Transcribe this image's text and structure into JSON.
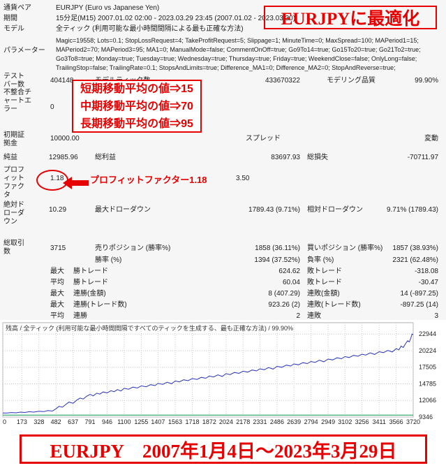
{
  "colors": {
    "annotation_red": "#e60000",
    "balance_line": "#2733b8",
    "lots_line": "#009a4e",
    "grid": "#c9c9c9",
    "report_bg": "#f6f6f6"
  },
  "report": {
    "rows": {
      "symbol": {
        "label": "通貨ペア",
        "value": "EURJPY (Euro vs Japanese Yen)"
      },
      "period": {
        "label": "期間",
        "value": "15分足(M15) 2007.01.02 02:00 - 2023.03.29 23:45 (2007.01.02 - 2023.03.30)"
      },
      "model": {
        "label": "モデル",
        "value": "全ティック (利用可能な最小時間間隔による最も正確な方法)"
      },
      "params": {
        "label": "パラメーター",
        "value": "Magic=19558; Lots=0.1; StopLossRequest=4; TakeProfitRequest=5; Slippage=1; MinuteTime=0; MaxSpread=100; MAPeriod1=15; MAPeriod2=70; MAPeriod3=95; MA1=0; ManualMode=false; CommentOnOff=true; Go9To14=true; Go15To20=true; Go21To2=true; Go3To8=true; Monday=true; Tuesday=true; Wednesday=true; Thursday=true; Friday=true; WeekendClose=false; OnlyLong=false; TrailingStop=false; TrailingRate=0.1; StopsAndLimits=true; Difference_MA1=0; Difference_MA2=0; StopAndReverse=true;"
      },
      "bars": {
        "label": "テストバー数",
        "value": "404148"
      },
      "ticks": {
        "label": "モデルティック数",
        "value": "433670322"
      },
      "quality": {
        "label": "モデリング品質",
        "value": "99.90%"
      },
      "mismatch": {
        "label": "不整合チャートエラー",
        "value": "0"
      },
      "deposit": {
        "label": "初期証拠金",
        "value": "10000.00"
      },
      "spread": {
        "label": "スプレッド",
        "value": "変動"
      },
      "net": {
        "label": "純益",
        "value": "12985.96"
      },
      "gross_profit": {
        "label": "総利益",
        "value": "83697.93"
      },
      "gross_loss": {
        "label": "総損失",
        "value": "-70711.97"
      },
      "pf": {
        "label": "プロフィットファクタ",
        "value": "1.18"
      },
      "payoff": {
        "label": "期待利得",
        "value": "3.50"
      },
      "abs_dd": {
        "label": "絶対ドローダウン",
        "value": "10.29"
      },
      "max_dd": {
        "label": "最大ドローダウン",
        "value": "1789.43 (9.71%)"
      },
      "rel_dd": {
        "label": "相対ドローダウン",
        "value": "9.71% (1789.43)"
      },
      "total_trades": {
        "label": "総取引数",
        "value": "3715"
      },
      "short_pos": {
        "label": "売りポジション (勝率%)",
        "value": "1858 (36.11%)"
      },
      "long_pos": {
        "label": "買いポジション (勝率%)",
        "value": "1857 (38.93%)"
      },
      "win": {
        "label": "勝率 (%)",
        "value": "1394 (37.52%)"
      },
      "loss": {
        "label": "負率 (%)",
        "value": "2321 (62.48%)"
      },
      "max_label": "最大",
      "avg_label": "平均",
      "largest_win": {
        "label": "勝トレード",
        "value": "624.62"
      },
      "largest_loss": {
        "label": "敗トレード",
        "value": "-318.08"
      },
      "avg_win": {
        "label": "勝トレード",
        "value": "60.04"
      },
      "avg_loss": {
        "label": "敗トレード",
        "value": "-30.47"
      },
      "consec_win_money": {
        "label": "連勝(金額)",
        "value": "8 (407.29)"
      },
      "consec_loss_money": {
        "label": "連敗(金額)",
        "value": "14 (-897.25)"
      },
      "consec_win_count": {
        "label": "連勝(トレード数)",
        "value": "923.26 (2)"
      },
      "consec_loss_count": {
        "label": "連敗(トレード数)",
        "value": "-897.25 (14)"
      },
      "avg_consec_win": {
        "label": "連勝",
        "value": "2"
      },
      "avg_consec_loss": {
        "label": "連敗",
        "value": "3"
      }
    }
  },
  "annotations": {
    "optimized": "EURJPYに最適化",
    "ma_lines": [
      "短期移動平均の値⇒15",
      "中期移動平均の値⇒70",
      "長期移動平均の値⇒95"
    ],
    "pf_note": "プロフィットファクター1.18",
    "bottom": "EURJPY　2007年1月4日～2023年3月29日"
  },
  "chart_data": {
    "type": "line",
    "caption": "残高 / 全ティック (利用可能な最小時間間隔ですべてのティックを生成する、最も正確な方法) / 99.90%",
    "xlabel": "",
    "ylabel": "",
    "grid": true,
    "legend": "none",
    "x_ticks": [
      0,
      173,
      328,
      482,
      637,
      791,
      946,
      1100,
      1255,
      1407,
      1563,
      1718,
      1872,
      2024,
      2178,
      2331,
      2486,
      2639,
      2794,
      2949,
      3102,
      3256,
      3411,
      3566,
      3720
    ],
    "y_ticks": [
      9346,
      12066,
      14785,
      17505,
      20224,
      22944
    ],
    "xlim": [
      0,
      3720
    ],
    "ylim": [
      9346,
      24800
    ],
    "series": [
      {
        "name": "balance",
        "color": "#2733b8",
        "points": [
          [
            0,
            10000
          ],
          [
            40,
            9995
          ],
          [
            80,
            10080
          ],
          [
            120,
            10030
          ],
          [
            160,
            10150
          ],
          [
            200,
            10090
          ],
          [
            240,
            10220
          ],
          [
            280,
            10150
          ],
          [
            328,
            10300
          ],
          [
            370,
            10230
          ],
          [
            410,
            10400
          ],
          [
            450,
            10320
          ],
          [
            482,
            10700
          ],
          [
            510,
            11100
          ],
          [
            540,
            10950
          ],
          [
            570,
            11400
          ],
          [
            600,
            11800
          ],
          [
            637,
            11600
          ],
          [
            670,
            12100
          ],
          [
            700,
            12450
          ],
          [
            730,
            12300
          ],
          [
            760,
            12750
          ],
          [
            791,
            13050
          ],
          [
            820,
            12800
          ],
          [
            850,
            13250
          ],
          [
            880,
            13100
          ],
          [
            910,
            13450
          ],
          [
            946,
            13300
          ],
          [
            980,
            13650
          ],
          [
            1010,
            13500
          ],
          [
            1040,
            13850
          ],
          [
            1070,
            13600
          ],
          [
            1100,
            14050
          ],
          [
            1140,
            13900
          ],
          [
            1180,
            14250
          ],
          [
            1220,
            14100
          ],
          [
            1255,
            14450
          ],
          [
            1300,
            14300
          ],
          [
            1340,
            14650
          ],
          [
            1380,
            14500
          ],
          [
            1407,
            14850
          ],
          [
            1450,
            14700
          ],
          [
            1490,
            15050
          ],
          [
            1530,
            14800
          ],
          [
            1563,
            15250
          ],
          [
            1600,
            15100
          ],
          [
            1640,
            15450
          ],
          [
            1680,
            15300
          ],
          [
            1718,
            15650
          ],
          [
            1760,
            15500
          ],
          [
            1800,
            15850
          ],
          [
            1840,
            15700
          ],
          [
            1872,
            16050
          ],
          [
            1910,
            15900
          ],
          [
            1950,
            16250
          ],
          [
            1990,
            16000
          ],
          [
            2024,
            16450
          ],
          [
            2060,
            16300
          ],
          [
            2100,
            16650
          ],
          [
            2140,
            16500
          ],
          [
            2178,
            16850
          ],
          [
            2220,
            16700
          ],
          [
            2260,
            17050
          ],
          [
            2300,
            16900
          ],
          [
            2331,
            17250
          ],
          [
            2370,
            17100
          ],
          [
            2410,
            17450
          ],
          [
            2450,
            17200
          ],
          [
            2486,
            17650
          ],
          [
            2530,
            17500
          ],
          [
            2570,
            17850
          ],
          [
            2610,
            17700
          ],
          [
            2639,
            18050
          ],
          [
            2680,
            17900
          ],
          [
            2720,
            18250
          ],
          [
            2760,
            18100
          ],
          [
            2794,
            18450
          ],
          [
            2830,
            18300
          ],
          [
            2870,
            18650
          ],
          [
            2910,
            18400
          ],
          [
            2949,
            18850
          ],
          [
            2990,
            18700
          ],
          [
            3030,
            19050
          ],
          [
            3070,
            18900
          ],
          [
            3102,
            19250
          ],
          [
            3140,
            19100
          ],
          [
            3180,
            19450
          ],
          [
            3220,
            19300
          ],
          [
            3256,
            19650
          ],
          [
            3290,
            19500
          ],
          [
            3330,
            19850
          ],
          [
            3370,
            19600
          ],
          [
            3411,
            20050
          ],
          [
            3450,
            19900
          ],
          [
            3490,
            20250
          ],
          [
            3530,
            20000
          ],
          [
            3566,
            20550
          ],
          [
            3590,
            20350
          ],
          [
            3610,
            20950
          ],
          [
            3630,
            20750
          ],
          [
            3650,
            21350
          ],
          [
            3670,
            21850
          ],
          [
            3685,
            21650
          ],
          [
            3700,
            22350
          ],
          [
            3710,
            22944
          ],
          [
            3720,
            22850
          ]
        ]
      },
      {
        "name": "lots",
        "color": "#009a4e",
        "points": [
          [
            0,
            9650
          ],
          [
            3720,
            9650
          ]
        ]
      }
    ]
  }
}
